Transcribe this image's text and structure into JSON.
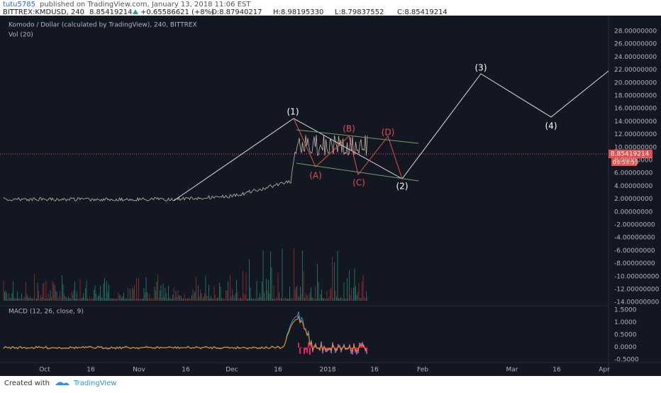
{
  "header": {
    "author": "tutu5785",
    "published": "published on TradingView.com, January 13, 2018 11:06 EST",
    "symbol": "BITTREX:KMDUSD, 240",
    "last": "8.85419214",
    "change": "+0.65586621 (+8%)",
    "open": "O:8.87940217",
    "high": "H:8.98195330",
    "low": "L:8.79837552",
    "close": "C:8.85419214"
  },
  "legend": {
    "main": "Komodo / Dollar (calculated by TradingView), 240, BITTREX",
    "volume": "Vol (20)",
    "macd": "MACD (12, 26, close, 9)"
  },
  "price_axis": [
    "28.00000000",
    "26.00000000",
    "24.00000000",
    "22.00000000",
    "20.00000000",
    "18.00000000",
    "16.00000000",
    "14.00000000",
    "12.00000000",
    "10.00000000",
    "8.00000000",
    "6.00000000",
    "4.00000000",
    "2.00000000",
    "0.00000000",
    "-2.00000000",
    "-4.00000000",
    "-6.00000000",
    "-8.00000000",
    "-10.00000000",
    "-12.00000000",
    "-14.00000000"
  ],
  "price_tag": "8.85419214",
  "countdown": "03:53:53",
  "macd_axis": [
    "1.5000",
    "1.0000",
    "0.5000",
    "0.0000",
    "-0.5000"
  ],
  "time_axis": [
    "Oct",
    "16",
    "Nov",
    "16",
    "Dec",
    "16",
    "2018",
    "16",
    "Feb",
    "Mar",
    "16",
    "Apr"
  ],
  "waves": [
    "(1)",
    "(A)",
    "(B)",
    "(C)",
    "(D)",
    "(2)",
    "(3)",
    "(4)"
  ],
  "footer": {
    "created": "Created with",
    "brand": "TradingView"
  }
}
